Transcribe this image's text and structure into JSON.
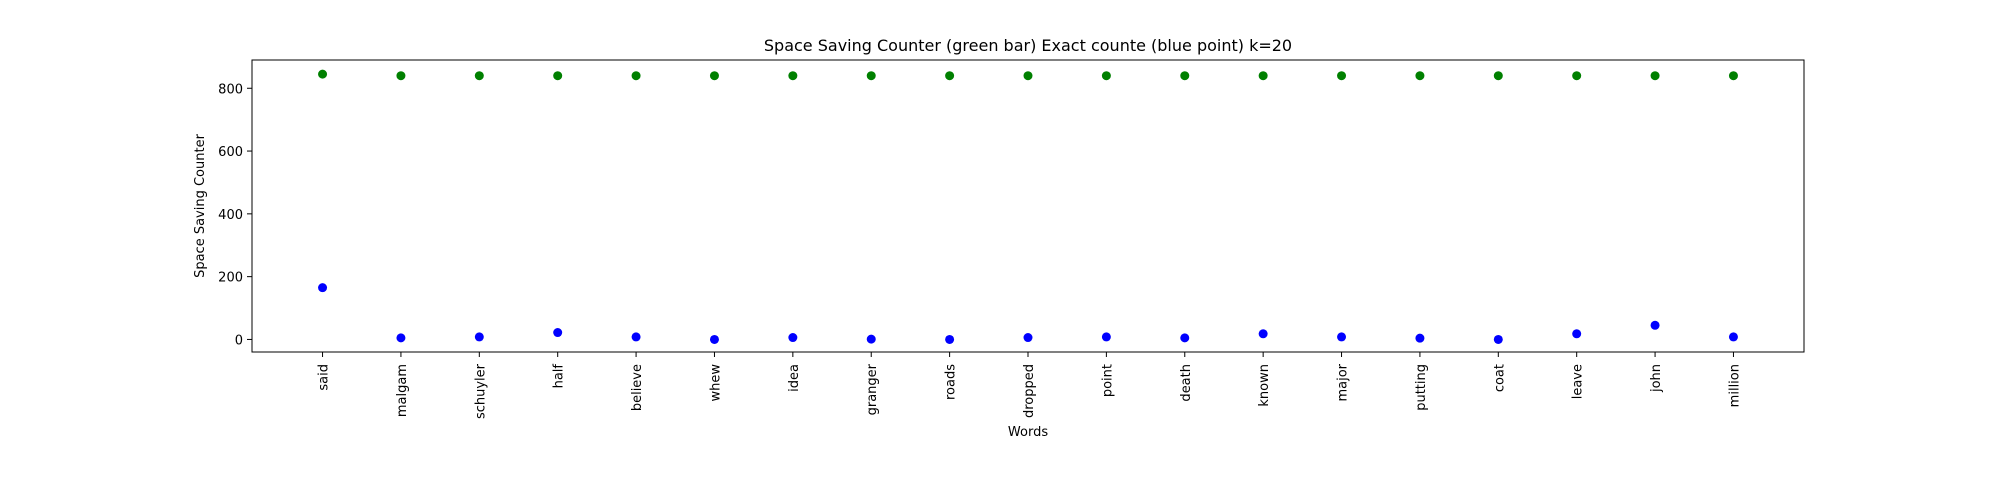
{
  "chart_data": {
    "type": "scatter",
    "title": "Space Saving Counter (green bar)  Exact counte (blue point) k=20",
    "xlabel": "Words",
    "ylabel": "Space Saving Counter",
    "categories": [
      "said",
      "malgam",
      "schuyler",
      "half",
      "believe",
      "whew",
      "idea",
      "granger",
      "roads",
      "dropped",
      "point",
      "death",
      "known",
      "major",
      "putting",
      "coat",
      "leave",
      "john",
      "million"
    ],
    "ylim": [
      -40,
      890
    ],
    "yticks": [
      0,
      200,
      400,
      600,
      800
    ],
    "grid": false,
    "legend": "none",
    "series": [
      {
        "color": "#008000",
        "values": [
          845,
          840,
          840,
          840,
          840,
          840,
          840,
          840,
          840,
          840,
          840,
          840,
          840,
          840,
          840,
          840,
          840,
          840,
          840
        ]
      },
      {
        "color": "#0000ff",
        "values": [
          165,
          5,
          8,
          22,
          8,
          0,
          6,
          1,
          0,
          6,
          8,
          5,
          18,
          8,
          4,
          0,
          18,
          45,
          8
        ]
      }
    ]
  }
}
